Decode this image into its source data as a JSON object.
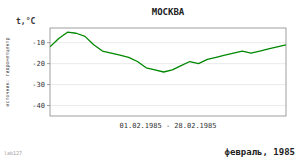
{
  "chart_data": {
    "type": "line",
    "title": "МОСКВА",
    "ylabel": "t,°C",
    "xlabel": "01.02.1985 - 28.02.1985",
    "annotations": [
      "февраль, 1985",
      "источник: гидрометцентр",
      "lab127"
    ],
    "x": [
      1,
      2,
      3,
      4,
      5,
      6,
      7,
      8,
      9,
      10,
      11,
      12,
      13,
      14,
      15,
      16,
      17,
      18,
      19,
      20,
      21,
      22,
      23,
      24,
      25,
      26,
      27,
      28
    ],
    "values": [
      -12,
      -8,
      -5,
      -5.5,
      -7,
      -11,
      -14,
      -15,
      -16,
      -17,
      -19,
      -22,
      -23,
      -24,
      -23,
      -21,
      -19,
      -20,
      -18,
      -17,
      -16,
      -15,
      -14,
      -15,
      -14,
      -13,
      -12,
      -11
    ],
    "color": "#008800",
    "xlim": [
      1,
      28
    ],
    "xticks": [],
    "ylim": [
      -45,
      -3
    ],
    "yticks": [
      -40,
      -30,
      -20,
      -10
    ],
    "grid": true,
    "tick_labels": "y"
  }
}
